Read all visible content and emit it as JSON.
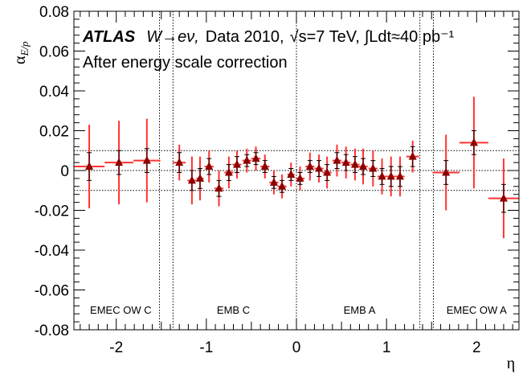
{
  "chart_data": {
    "type": "scatter",
    "xlabel": "η",
    "ylabel": "α",
    "ylabel_sub": "E/p",
    "xlim": [
      -2.47,
      2.47
    ],
    "ylim": [
      -0.08,
      0.08
    ],
    "x_ticks": [
      -2,
      -1,
      0,
      1,
      2
    ],
    "x_tick_labels": [
      "-2",
      "-1",
      "0",
      "1",
      "2"
    ],
    "y_ticks": [
      -0.08,
      -0.06,
      -0.04,
      -0.02,
      0,
      0.02,
      0.04,
      0.06,
      0.08
    ],
    "y_tick_labels": [
      "-0.08",
      "-0.06",
      "-0.04",
      "-0.02",
      "0",
      "0.02",
      "0.04",
      "0.06",
      "0.08"
    ],
    "grid": false,
    "legend": "none",
    "header": {
      "experiment": "ATLAS",
      "channel": "W→eν,",
      "dataset": "Data 2010,",
      "energy": "√s=7 TeV,",
      "lumi": "∫Ldt≈40 pb⁻¹",
      "subtitle": "After energy scale correction"
    },
    "reference_lines": {
      "horizontal": [
        -0.01,
        0,
        0.01
      ],
      "vertical": [
        -1.52,
        -1.37,
        0,
        1.37,
        1.52
      ]
    },
    "regions": [
      {
        "label": "EMEC OW C",
        "x": -1.95
      },
      {
        "label": "EMB C",
        "x": -0.7
      },
      {
        "label": "EMB A",
        "x": 0.7
      },
      {
        "label": "EMEC OW A",
        "x": 2.0
      }
    ],
    "series": [
      {
        "marker_color": "#8b0000",
        "error_color": "#ff3333",
        "points": [
          {
            "x": -2.3,
            "xerr": 0.17,
            "y": 0.002,
            "stat": 0.007,
            "tot": 0.021
          },
          {
            "x": -1.97,
            "xerr": 0.16,
            "y": 0.004,
            "stat": 0.006,
            "tot": 0.021
          },
          {
            "x": -1.66,
            "xerr": 0.15,
            "y": 0.005,
            "stat": 0.006,
            "tot": 0.021
          },
          {
            "x": -1.3,
            "xerr": 0.07,
            "y": 0.004,
            "stat": 0.005,
            "tot": 0.009
          },
          {
            "x": -1.16,
            "xerr": 0.05,
            "y": -0.005,
            "stat": 0.005,
            "tot": 0.012
          },
          {
            "x": -1.07,
            "xerr": 0.04,
            "y": -0.004,
            "stat": 0.005,
            "tot": 0.011
          },
          {
            "x": -0.97,
            "xerr": 0.05,
            "y": 0.002,
            "stat": 0.004,
            "tot": 0.008
          },
          {
            "x": -0.86,
            "xerr": 0.05,
            "y": -0.009,
            "stat": 0.004,
            "tot": 0.009
          },
          {
            "x": -0.75,
            "xerr": 0.05,
            "y": -0.001,
            "stat": 0.004,
            "tot": 0.008
          },
          {
            "x": -0.66,
            "xerr": 0.05,
            "y": 0.003,
            "stat": 0.004,
            "tot": 0.007
          },
          {
            "x": -0.55,
            "xerr": 0.05,
            "y": 0.005,
            "stat": 0.003,
            "tot": 0.006
          },
          {
            "x": -0.45,
            "xerr": 0.05,
            "y": 0.006,
            "stat": 0.003,
            "tot": 0.006
          },
          {
            "x": -0.35,
            "xerr": 0.05,
            "y": 0.002,
            "stat": 0.003,
            "tot": 0.006
          },
          {
            "x": -0.25,
            "xerr": 0.05,
            "y": -0.006,
            "stat": 0.003,
            "tot": 0.006
          },
          {
            "x": -0.16,
            "xerr": 0.05,
            "y": -0.008,
            "stat": 0.003,
            "tot": 0.006
          },
          {
            "x": -0.06,
            "xerr": 0.04,
            "y": -0.002,
            "stat": 0.003,
            "tot": 0.006
          },
          {
            "x": 0.04,
            "xerr": 0.05,
            "y": -0.004,
            "stat": 0.003,
            "tot": 0.006
          },
          {
            "x": 0.15,
            "xerr": 0.05,
            "y": 0.002,
            "stat": 0.003,
            "tot": 0.007
          },
          {
            "x": 0.25,
            "xerr": 0.05,
            "y": 0.001,
            "stat": 0.004,
            "tot": 0.007
          },
          {
            "x": 0.34,
            "xerr": 0.05,
            "y": -0.001,
            "stat": 0.004,
            "tot": 0.008
          },
          {
            "x": 0.45,
            "xerr": 0.05,
            "y": 0.005,
            "stat": 0.004,
            "tot": 0.008
          },
          {
            "x": 0.55,
            "xerr": 0.05,
            "y": 0.004,
            "stat": 0.004,
            "tot": 0.008
          },
          {
            "x": 0.65,
            "xerr": 0.05,
            "y": 0.003,
            "stat": 0.004,
            "tot": 0.008
          },
          {
            "x": 0.74,
            "xerr": 0.05,
            "y": 0.002,
            "stat": 0.004,
            "tot": 0.009
          },
          {
            "x": 0.85,
            "xerr": 0.05,
            "y": 0.001,
            "stat": 0.004,
            "tot": 0.009
          },
          {
            "x": 0.95,
            "xerr": 0.05,
            "y": -0.003,
            "stat": 0.004,
            "tot": 0.009
          },
          {
            "x": 1.05,
            "xerr": 0.05,
            "y": -0.003,
            "stat": 0.005,
            "tot": 0.01
          },
          {
            "x": 1.15,
            "xerr": 0.05,
            "y": -0.003,
            "stat": 0.005,
            "tot": 0.01
          },
          {
            "x": 1.29,
            "xerr": 0.07,
            "y": 0.007,
            "stat": 0.005,
            "tot": 0.008
          },
          {
            "x": 1.66,
            "xerr": 0.15,
            "y": -0.001,
            "stat": 0.006,
            "tot": 0.019
          },
          {
            "x": 1.97,
            "xerr": 0.16,
            "y": 0.014,
            "stat": 0.006,
            "tot": 0.023
          },
          {
            "x": 2.3,
            "xerr": 0.17,
            "y": -0.014,
            "stat": 0.007,
            "tot": 0.02
          }
        ]
      }
    ]
  }
}
